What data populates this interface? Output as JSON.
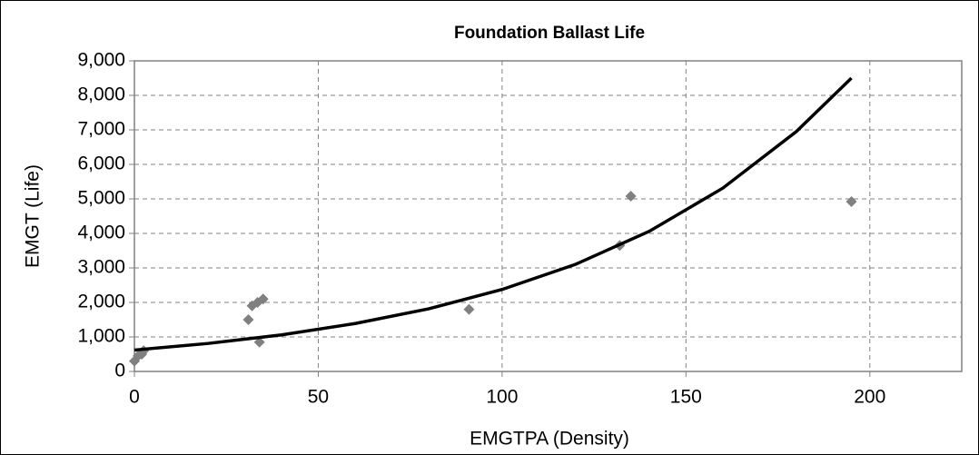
{
  "chart_data": {
    "type": "scatter",
    "title": "Foundation Ballast Life",
    "x_label": "EMGTPA (Density)",
    "y_label": "EMGT (Life)",
    "xlim": [
      0,
      225
    ],
    "xticks": [
      0,
      50,
      100,
      150,
      200
    ],
    "ylim": [
      0,
      9000
    ],
    "yticks": [
      {
        "value": 0,
        "label": "0"
      },
      {
        "value": 1000,
        "label": "1,000"
      },
      {
        "value": 2000,
        "label": "2,000"
      },
      {
        "value": 3000,
        "label": "3,000"
      },
      {
        "value": 4000,
        "label": "4,000"
      },
      {
        "value": 5000,
        "label": "5,000"
      },
      {
        "value": 6000,
        "label": "6,000"
      },
      {
        "value": 7000,
        "label": "7,000"
      },
      {
        "value": 8000,
        "label": "8,000"
      },
      {
        "value": 9000,
        "label": "9,000"
      }
    ],
    "grid": true,
    "series": [
      {
        "type": "scatter",
        "color": "#808080",
        "x": [
          0,
          1,
          2,
          2.5,
          31,
          32,
          33.5,
          35,
          34,
          91,
          132,
          135,
          195
        ],
        "values": [
          300,
          450,
          500,
          600,
          1500,
          1900,
          2000,
          2100,
          850,
          1800,
          3650,
          5080,
          4920
        ]
      },
      {
        "type": "line",
        "color": "#000000",
        "x": [
          0,
          20,
          40,
          60,
          80,
          100,
          120,
          140,
          160,
          180,
          195
        ],
        "values": [
          620,
          811,
          1060,
          1388,
          1815,
          2375,
          3105,
          4060,
          5310,
          6950,
          8500
        ]
      }
    ]
  }
}
